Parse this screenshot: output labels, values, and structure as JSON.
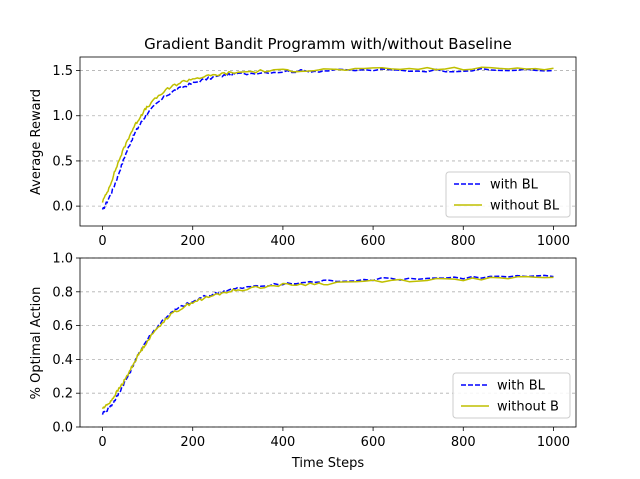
{
  "chart_data": [
    {
      "type": "line",
      "title": "Gradient Bandit Programm with/without Baseline",
      "xlabel": "",
      "ylabel": "Average Reward",
      "xlim": [
        -50,
        1050
      ],
      "ylim": [
        -0.22,
        1.65
      ],
      "xticks": [
        0,
        200,
        400,
        600,
        800,
        1000
      ],
      "yticks": [
        0.0,
        0.5,
        1.0,
        1.5
      ],
      "ytick_labels": [
        "0.0",
        "0.5",
        "1.0",
        "1.5"
      ],
      "grid": "y-dashed",
      "legend": "lower-right",
      "x": [
        0,
        10,
        20,
        30,
        40,
        50,
        60,
        70,
        80,
        90,
        100,
        120,
        140,
        160,
        180,
        200,
        225,
        250,
        275,
        300,
        350,
        400,
        450,
        500,
        600,
        700,
        800,
        900,
        1000
      ],
      "series": [
        {
          "name": "with BL",
          "color": "#0000ff",
          "style": "dashed",
          "values": [
            -0.05,
            0.05,
            0.15,
            0.28,
            0.42,
            0.56,
            0.68,
            0.79,
            0.88,
            0.96,
            1.03,
            1.13,
            1.22,
            1.28,
            1.32,
            1.36,
            1.4,
            1.43,
            1.45,
            1.46,
            1.48,
            1.49,
            1.495,
            1.5,
            1.505,
            1.5,
            1.505,
            1.505,
            1.5
          ]
        },
        {
          "name": "without BL",
          "color": "#bfbf00",
          "style": "solid",
          "values": [
            0.05,
            0.15,
            0.28,
            0.42,
            0.55,
            0.67,
            0.78,
            0.88,
            0.96,
            1.04,
            1.1,
            1.2,
            1.28,
            1.34,
            1.38,
            1.41,
            1.43,
            1.45,
            1.47,
            1.48,
            1.495,
            1.5,
            1.505,
            1.51,
            1.515,
            1.52,
            1.52,
            1.525,
            1.525
          ]
        }
      ]
    },
    {
      "type": "line",
      "title": "",
      "xlabel": "Time Steps",
      "ylabel": "% Optimal Action",
      "xlim": [
        -50,
        1050
      ],
      "ylim": [
        0.0,
        1.0
      ],
      "xticks": [
        0,
        200,
        400,
        600,
        800,
        1000
      ],
      "yticks": [
        0.0,
        0.2,
        0.4,
        0.6,
        0.8,
        1.0
      ],
      "ytick_labels": [
        "0.0",
        "0.2",
        "0.4",
        "0.6",
        "0.8",
        "1.0"
      ],
      "grid": "y-dashed",
      "legend": "lower-right",
      "x": [
        0,
        10,
        20,
        30,
        40,
        50,
        60,
        70,
        80,
        90,
        100,
        120,
        140,
        160,
        180,
        200,
        225,
        250,
        275,
        300,
        350,
        400,
        450,
        500,
        600,
        700,
        800,
        900,
        1000
      ],
      "series": [
        {
          "name": "with BL",
          "color": "#0000ff",
          "style": "dashed",
          "values": [
            0.08,
            0.1,
            0.13,
            0.17,
            0.22,
            0.27,
            0.32,
            0.38,
            0.43,
            0.48,
            0.52,
            0.59,
            0.65,
            0.69,
            0.72,
            0.74,
            0.77,
            0.79,
            0.81,
            0.82,
            0.835,
            0.845,
            0.855,
            0.865,
            0.875,
            0.88,
            0.885,
            0.89,
            0.89
          ]
        },
        {
          "name": "without B",
          "color": "#bfbf00",
          "style": "solid",
          "values": [
            0.11,
            0.13,
            0.16,
            0.2,
            0.24,
            0.28,
            0.33,
            0.38,
            0.43,
            0.47,
            0.51,
            0.58,
            0.64,
            0.68,
            0.71,
            0.74,
            0.76,
            0.78,
            0.8,
            0.81,
            0.83,
            0.84,
            0.845,
            0.85,
            0.865,
            0.87,
            0.875,
            0.88,
            0.885
          ]
        }
      ]
    }
  ]
}
